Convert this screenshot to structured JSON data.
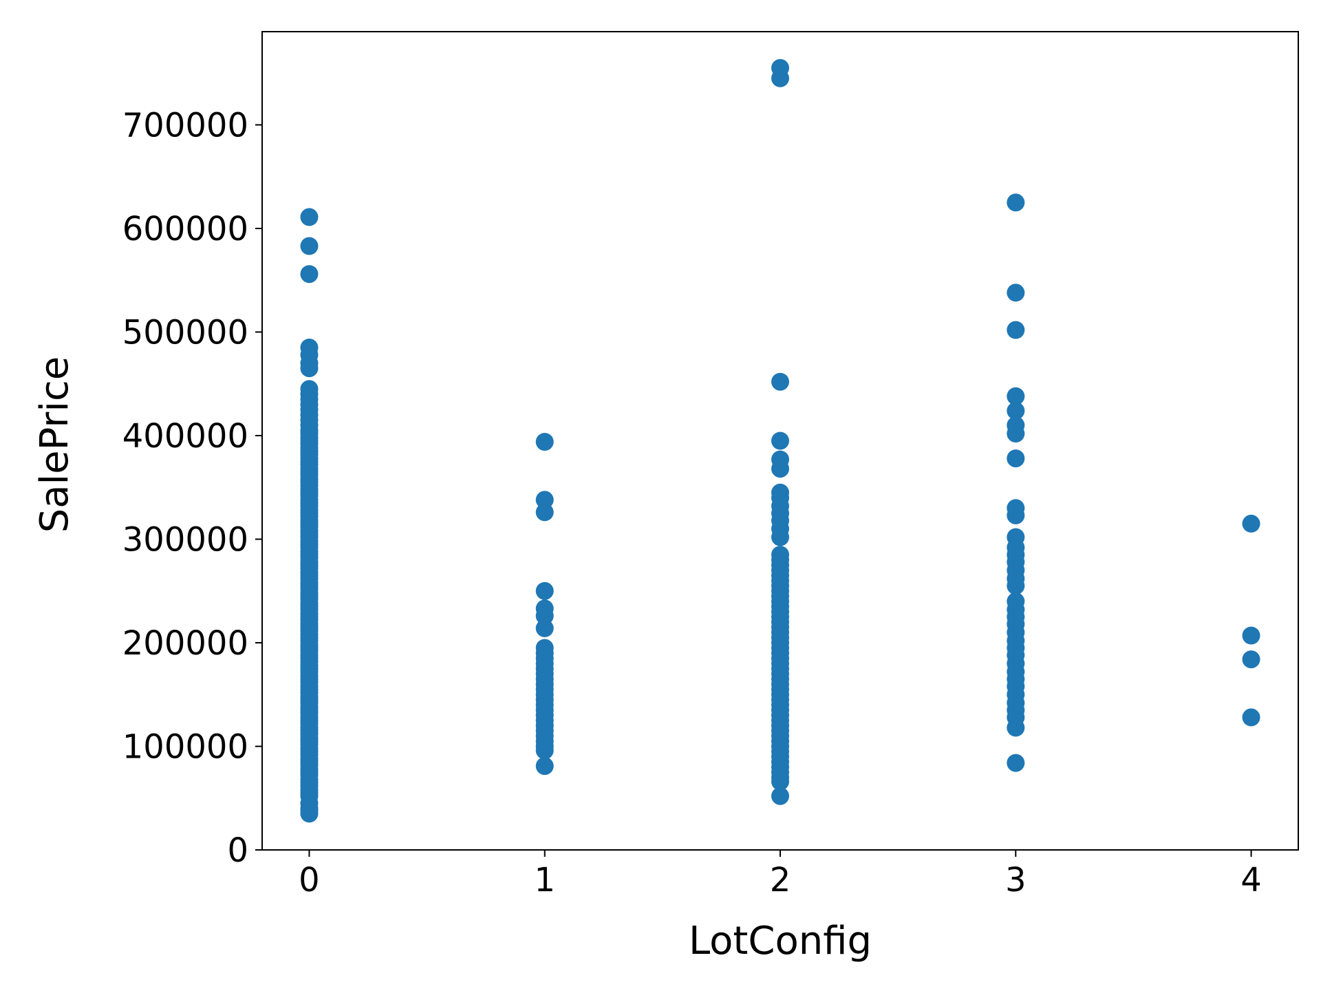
{
  "chart_data": {
    "type": "scatter",
    "title": "",
    "xlabel": "LotConfig",
    "ylabel": "SalePrice",
    "xlim": [
      -0.2,
      4.2
    ],
    "ylim": [
      0,
      790000
    ],
    "xticks": [
      0,
      1,
      2,
      3,
      4
    ],
    "yticks": [
      0,
      100000,
      200000,
      300000,
      400000,
      500000,
      600000,
      700000
    ],
    "grid": false,
    "legend": "none",
    "marker_color": "#1f77b4",
    "series": [
      {
        "points": [
          [
            0,
            35000
          ],
          [
            0,
            38000
          ],
          [
            0,
            40000
          ],
          [
            0,
            45000
          ],
          [
            0,
            52000
          ],
          [
            0,
            55000
          ],
          [
            0,
            58000
          ],
          [
            0,
            62000
          ],
          [
            0,
            65000
          ],
          [
            0,
            68000
          ],
          [
            0,
            72000
          ],
          [
            0,
            75000
          ],
          [
            0,
            78000
          ],
          [
            0,
            82000
          ],
          [
            0,
            85000
          ],
          [
            0,
            88000
          ],
          [
            0,
            92000
          ],
          [
            0,
            95000
          ],
          [
            0,
            98000
          ],
          [
            0,
            102000
          ],
          [
            0,
            105000
          ],
          [
            0,
            108000
          ],
          [
            0,
            112000
          ],
          [
            0,
            115000
          ],
          [
            0,
            118000
          ],
          [
            0,
            122000
          ],
          [
            0,
            125000
          ],
          [
            0,
            128000
          ],
          [
            0,
            132000
          ],
          [
            0,
            135000
          ],
          [
            0,
            138000
          ],
          [
            0,
            142000
          ],
          [
            0,
            145000
          ],
          [
            0,
            148000
          ],
          [
            0,
            152000
          ],
          [
            0,
            155000
          ],
          [
            0,
            158000
          ],
          [
            0,
            162000
          ],
          [
            0,
            165000
          ],
          [
            0,
            168000
          ],
          [
            0,
            172000
          ],
          [
            0,
            175000
          ],
          [
            0,
            178000
          ],
          [
            0,
            182000
          ],
          [
            0,
            185000
          ],
          [
            0,
            188000
          ],
          [
            0,
            192000
          ],
          [
            0,
            195000
          ],
          [
            0,
            198000
          ],
          [
            0,
            202000
          ],
          [
            0,
            205000
          ],
          [
            0,
            208000
          ],
          [
            0,
            212000
          ],
          [
            0,
            215000
          ],
          [
            0,
            218000
          ],
          [
            0,
            222000
          ],
          [
            0,
            225000
          ],
          [
            0,
            228000
          ],
          [
            0,
            232000
          ],
          [
            0,
            235000
          ],
          [
            0,
            238000
          ],
          [
            0,
            242000
          ],
          [
            0,
            245000
          ],
          [
            0,
            248000
          ],
          [
            0,
            252000
          ],
          [
            0,
            255000
          ],
          [
            0,
            258000
          ],
          [
            0,
            262000
          ],
          [
            0,
            265000
          ],
          [
            0,
            268000
          ],
          [
            0,
            272000
          ],
          [
            0,
            275000
          ],
          [
            0,
            278000
          ],
          [
            0,
            282000
          ],
          [
            0,
            285000
          ],
          [
            0,
            288000
          ],
          [
            0,
            292000
          ],
          [
            0,
            295000
          ],
          [
            0,
            298000
          ],
          [
            0,
            302000
          ],
          [
            0,
            305000
          ],
          [
            0,
            308000
          ],
          [
            0,
            312000
          ],
          [
            0,
            315000
          ],
          [
            0,
            318000
          ],
          [
            0,
            322000
          ],
          [
            0,
            325000
          ],
          [
            0,
            328000
          ],
          [
            0,
            332000
          ],
          [
            0,
            335000
          ],
          [
            0,
            338000
          ],
          [
            0,
            342000
          ],
          [
            0,
            345000
          ],
          [
            0,
            348000
          ],
          [
            0,
            352000
          ],
          [
            0,
            355000
          ],
          [
            0,
            358000
          ],
          [
            0,
            362000
          ],
          [
            0,
            365000
          ],
          [
            0,
            368000
          ],
          [
            0,
            372000
          ],
          [
            0,
            375000
          ],
          [
            0,
            378000
          ],
          [
            0,
            382000
          ],
          [
            0,
            385000
          ],
          [
            0,
            388000
          ],
          [
            0,
            392000
          ],
          [
            0,
            395000
          ],
          [
            0,
            398000
          ],
          [
            0,
            402000
          ],
          [
            0,
            405000
          ],
          [
            0,
            410000
          ],
          [
            0,
            415000
          ],
          [
            0,
            420000
          ],
          [
            0,
            425000
          ],
          [
            0,
            430000
          ],
          [
            0,
            435000
          ],
          [
            0,
            440000
          ],
          [
            0,
            445000
          ],
          [
            0,
            465000
          ],
          [
            0,
            470000
          ],
          [
            0,
            478000
          ],
          [
            0,
            485000
          ],
          [
            0,
            556000
          ],
          [
            0,
            583000
          ],
          [
            0,
            611000
          ],
          [
            1,
            81000
          ],
          [
            1,
            96000
          ],
          [
            1,
            100000
          ],
          [
            1,
            105000
          ],
          [
            1,
            110000
          ],
          [
            1,
            115000
          ],
          [
            1,
            120000
          ],
          [
            1,
            125000
          ],
          [
            1,
            130000
          ],
          [
            1,
            135000
          ],
          [
            1,
            140000
          ],
          [
            1,
            145000
          ],
          [
            1,
            150000
          ],
          [
            1,
            155000
          ],
          [
            1,
            160000
          ],
          [
            1,
            165000
          ],
          [
            1,
            170000
          ],
          [
            1,
            175000
          ],
          [
            1,
            180000
          ],
          [
            1,
            185000
          ],
          [
            1,
            190000
          ],
          [
            1,
            195000
          ],
          [
            1,
            214000
          ],
          [
            1,
            226000
          ],
          [
            1,
            233000
          ],
          [
            1,
            250000
          ],
          [
            1,
            326000
          ],
          [
            1,
            338000
          ],
          [
            1,
            394000
          ],
          [
            2,
            52000
          ],
          [
            2,
            66000
          ],
          [
            2,
            70000
          ],
          [
            2,
            75000
          ],
          [
            2,
            80000
          ],
          [
            2,
            85000
          ],
          [
            2,
            90000
          ],
          [
            2,
            95000
          ],
          [
            2,
            100000
          ],
          [
            2,
            105000
          ],
          [
            2,
            110000
          ],
          [
            2,
            115000
          ],
          [
            2,
            120000
          ],
          [
            2,
            125000
          ],
          [
            2,
            130000
          ],
          [
            2,
            135000
          ],
          [
            2,
            140000
          ],
          [
            2,
            145000
          ],
          [
            2,
            150000
          ],
          [
            2,
            155000
          ],
          [
            2,
            160000
          ],
          [
            2,
            165000
          ],
          [
            2,
            170000
          ],
          [
            2,
            175000
          ],
          [
            2,
            180000
          ],
          [
            2,
            185000
          ],
          [
            2,
            190000
          ],
          [
            2,
            195000
          ],
          [
            2,
            200000
          ],
          [
            2,
            205000
          ],
          [
            2,
            210000
          ],
          [
            2,
            215000
          ],
          [
            2,
            220000
          ],
          [
            2,
            225000
          ],
          [
            2,
            230000
          ],
          [
            2,
            235000
          ],
          [
            2,
            240000
          ],
          [
            2,
            245000
          ],
          [
            2,
            250000
          ],
          [
            2,
            255000
          ],
          [
            2,
            260000
          ],
          [
            2,
            265000
          ],
          [
            2,
            270000
          ],
          [
            2,
            275000
          ],
          [
            2,
            280000
          ],
          [
            2,
            285000
          ],
          [
            2,
            302000
          ],
          [
            2,
            310000
          ],
          [
            2,
            318000
          ],
          [
            2,
            325000
          ],
          [
            2,
            332000
          ],
          [
            2,
            340000
          ],
          [
            2,
            345000
          ],
          [
            2,
            368000
          ],
          [
            2,
            377000
          ],
          [
            2,
            395000
          ],
          [
            2,
            452000
          ],
          [
            2,
            745000
          ],
          [
            2,
            755000
          ],
          [
            3,
            84000
          ],
          [
            3,
            118000
          ],
          [
            3,
            128000
          ],
          [
            3,
            135000
          ],
          [
            3,
            142000
          ],
          [
            3,
            150000
          ],
          [
            3,
            158000
          ],
          [
            3,
            165000
          ],
          [
            3,
            172000
          ],
          [
            3,
            180000
          ],
          [
            3,
            188000
          ],
          [
            3,
            195000
          ],
          [
            3,
            202000
          ],
          [
            3,
            210000
          ],
          [
            3,
            218000
          ],
          [
            3,
            225000
          ],
          [
            3,
            232000
          ],
          [
            3,
            240000
          ],
          [
            3,
            255000
          ],
          [
            3,
            262000
          ],
          [
            3,
            270000
          ],
          [
            3,
            278000
          ],
          [
            3,
            285000
          ],
          [
            3,
            292000
          ],
          [
            3,
            302000
          ],
          [
            3,
            323000
          ],
          [
            3,
            330000
          ],
          [
            3,
            378000
          ],
          [
            3,
            402000
          ],
          [
            3,
            410000
          ],
          [
            3,
            424000
          ],
          [
            3,
            438000
          ],
          [
            3,
            502000
          ],
          [
            3,
            538000
          ],
          [
            3,
            625000
          ],
          [
            4,
            128000
          ],
          [
            4,
            184000
          ],
          [
            4,
            207000
          ],
          [
            4,
            315000
          ]
        ]
      }
    ]
  }
}
